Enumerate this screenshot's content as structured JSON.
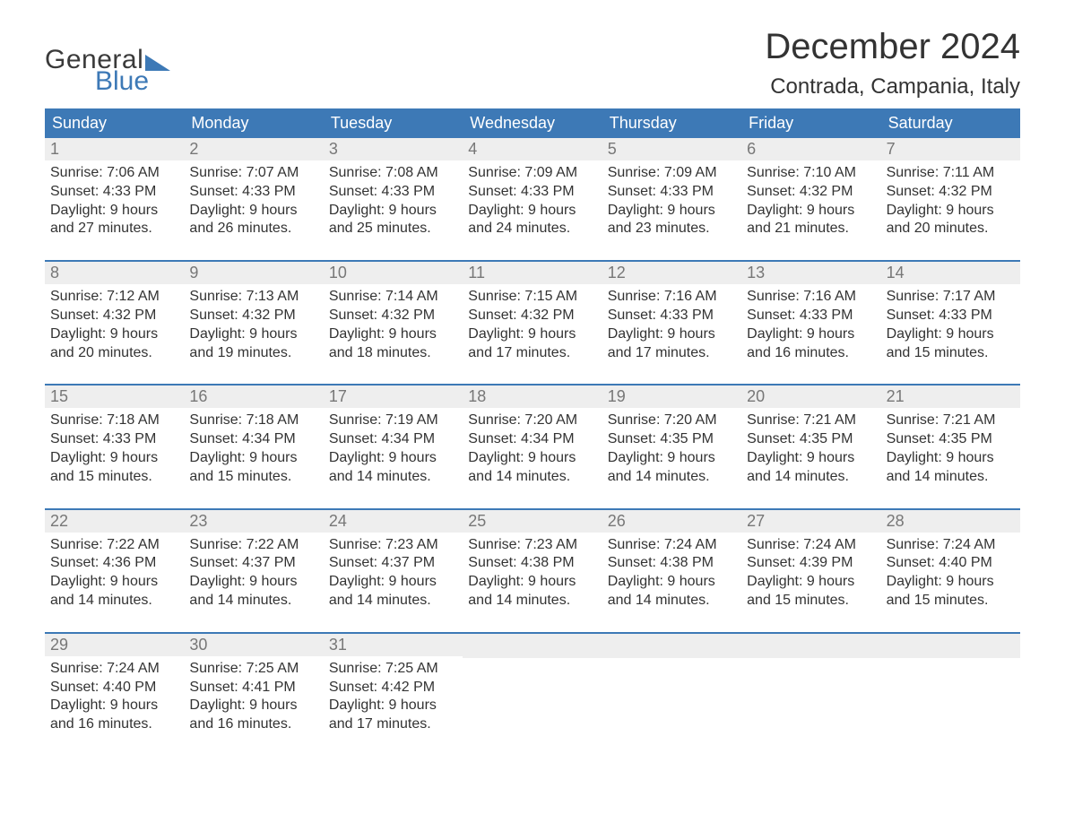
{
  "brand": {
    "general": "General",
    "blue": "Blue"
  },
  "title": "December 2024",
  "location": "Contrada, Campania, Italy",
  "colors": {
    "header_bg": "#3d79b6",
    "header_text": "#ffffff",
    "daynum_bg": "#eeeeee",
    "daynum_text": "#777777",
    "body_text": "#333333",
    "rule": "#3d79b6",
    "page_bg": "#ffffff"
  },
  "days_of_week": [
    "Sunday",
    "Monday",
    "Tuesday",
    "Wednesday",
    "Thursday",
    "Friday",
    "Saturday"
  ],
  "weeks": [
    [
      {
        "n": "1",
        "sunrise": "Sunrise: 7:06 AM",
        "sunset": "Sunset: 4:33 PM",
        "daylight1": "Daylight: 9 hours",
        "daylight2": "and 27 minutes."
      },
      {
        "n": "2",
        "sunrise": "Sunrise: 7:07 AM",
        "sunset": "Sunset: 4:33 PM",
        "daylight1": "Daylight: 9 hours",
        "daylight2": "and 26 minutes."
      },
      {
        "n": "3",
        "sunrise": "Sunrise: 7:08 AM",
        "sunset": "Sunset: 4:33 PM",
        "daylight1": "Daylight: 9 hours",
        "daylight2": "and 25 minutes."
      },
      {
        "n": "4",
        "sunrise": "Sunrise: 7:09 AM",
        "sunset": "Sunset: 4:33 PM",
        "daylight1": "Daylight: 9 hours",
        "daylight2": "and 24 minutes."
      },
      {
        "n": "5",
        "sunrise": "Sunrise: 7:09 AM",
        "sunset": "Sunset: 4:33 PM",
        "daylight1": "Daylight: 9 hours",
        "daylight2": "and 23 minutes."
      },
      {
        "n": "6",
        "sunrise": "Sunrise: 7:10 AM",
        "sunset": "Sunset: 4:32 PM",
        "daylight1": "Daylight: 9 hours",
        "daylight2": "and 21 minutes."
      },
      {
        "n": "7",
        "sunrise": "Sunrise: 7:11 AM",
        "sunset": "Sunset: 4:32 PM",
        "daylight1": "Daylight: 9 hours",
        "daylight2": "and 20 minutes."
      }
    ],
    [
      {
        "n": "8",
        "sunrise": "Sunrise: 7:12 AM",
        "sunset": "Sunset: 4:32 PM",
        "daylight1": "Daylight: 9 hours",
        "daylight2": "and 20 minutes."
      },
      {
        "n": "9",
        "sunrise": "Sunrise: 7:13 AM",
        "sunset": "Sunset: 4:32 PM",
        "daylight1": "Daylight: 9 hours",
        "daylight2": "and 19 minutes."
      },
      {
        "n": "10",
        "sunrise": "Sunrise: 7:14 AM",
        "sunset": "Sunset: 4:32 PM",
        "daylight1": "Daylight: 9 hours",
        "daylight2": "and 18 minutes."
      },
      {
        "n": "11",
        "sunrise": "Sunrise: 7:15 AM",
        "sunset": "Sunset: 4:32 PM",
        "daylight1": "Daylight: 9 hours",
        "daylight2": "and 17 minutes."
      },
      {
        "n": "12",
        "sunrise": "Sunrise: 7:16 AM",
        "sunset": "Sunset: 4:33 PM",
        "daylight1": "Daylight: 9 hours",
        "daylight2": "and 17 minutes."
      },
      {
        "n": "13",
        "sunrise": "Sunrise: 7:16 AM",
        "sunset": "Sunset: 4:33 PM",
        "daylight1": "Daylight: 9 hours",
        "daylight2": "and 16 minutes."
      },
      {
        "n": "14",
        "sunrise": "Sunrise: 7:17 AM",
        "sunset": "Sunset: 4:33 PM",
        "daylight1": "Daylight: 9 hours",
        "daylight2": "and 15 minutes."
      }
    ],
    [
      {
        "n": "15",
        "sunrise": "Sunrise: 7:18 AM",
        "sunset": "Sunset: 4:33 PM",
        "daylight1": "Daylight: 9 hours",
        "daylight2": "and 15 minutes."
      },
      {
        "n": "16",
        "sunrise": "Sunrise: 7:18 AM",
        "sunset": "Sunset: 4:34 PM",
        "daylight1": "Daylight: 9 hours",
        "daylight2": "and 15 minutes."
      },
      {
        "n": "17",
        "sunrise": "Sunrise: 7:19 AM",
        "sunset": "Sunset: 4:34 PM",
        "daylight1": "Daylight: 9 hours",
        "daylight2": "and 14 minutes."
      },
      {
        "n": "18",
        "sunrise": "Sunrise: 7:20 AM",
        "sunset": "Sunset: 4:34 PM",
        "daylight1": "Daylight: 9 hours",
        "daylight2": "and 14 minutes."
      },
      {
        "n": "19",
        "sunrise": "Sunrise: 7:20 AM",
        "sunset": "Sunset: 4:35 PM",
        "daylight1": "Daylight: 9 hours",
        "daylight2": "and 14 minutes."
      },
      {
        "n": "20",
        "sunrise": "Sunrise: 7:21 AM",
        "sunset": "Sunset: 4:35 PM",
        "daylight1": "Daylight: 9 hours",
        "daylight2": "and 14 minutes."
      },
      {
        "n": "21",
        "sunrise": "Sunrise: 7:21 AM",
        "sunset": "Sunset: 4:35 PM",
        "daylight1": "Daylight: 9 hours",
        "daylight2": "and 14 minutes."
      }
    ],
    [
      {
        "n": "22",
        "sunrise": "Sunrise: 7:22 AM",
        "sunset": "Sunset: 4:36 PM",
        "daylight1": "Daylight: 9 hours",
        "daylight2": "and 14 minutes."
      },
      {
        "n": "23",
        "sunrise": "Sunrise: 7:22 AM",
        "sunset": "Sunset: 4:37 PM",
        "daylight1": "Daylight: 9 hours",
        "daylight2": "and 14 minutes."
      },
      {
        "n": "24",
        "sunrise": "Sunrise: 7:23 AM",
        "sunset": "Sunset: 4:37 PM",
        "daylight1": "Daylight: 9 hours",
        "daylight2": "and 14 minutes."
      },
      {
        "n": "25",
        "sunrise": "Sunrise: 7:23 AM",
        "sunset": "Sunset: 4:38 PM",
        "daylight1": "Daylight: 9 hours",
        "daylight2": "and 14 minutes."
      },
      {
        "n": "26",
        "sunrise": "Sunrise: 7:24 AM",
        "sunset": "Sunset: 4:38 PM",
        "daylight1": "Daylight: 9 hours",
        "daylight2": "and 14 minutes."
      },
      {
        "n": "27",
        "sunrise": "Sunrise: 7:24 AM",
        "sunset": "Sunset: 4:39 PM",
        "daylight1": "Daylight: 9 hours",
        "daylight2": "and 15 minutes."
      },
      {
        "n": "28",
        "sunrise": "Sunrise: 7:24 AM",
        "sunset": "Sunset: 4:40 PM",
        "daylight1": "Daylight: 9 hours",
        "daylight2": "and 15 minutes."
      }
    ],
    [
      {
        "n": "29",
        "sunrise": "Sunrise: 7:24 AM",
        "sunset": "Sunset: 4:40 PM",
        "daylight1": "Daylight: 9 hours",
        "daylight2": "and 16 minutes."
      },
      {
        "n": "30",
        "sunrise": "Sunrise: 7:25 AM",
        "sunset": "Sunset: 4:41 PM",
        "daylight1": "Daylight: 9 hours",
        "daylight2": "and 16 minutes."
      },
      {
        "n": "31",
        "sunrise": "Sunrise: 7:25 AM",
        "sunset": "Sunset: 4:42 PM",
        "daylight1": "Daylight: 9 hours",
        "daylight2": "and 17 minutes."
      },
      {
        "empty": true
      },
      {
        "empty": true
      },
      {
        "empty": true
      },
      {
        "empty": true
      }
    ]
  ]
}
